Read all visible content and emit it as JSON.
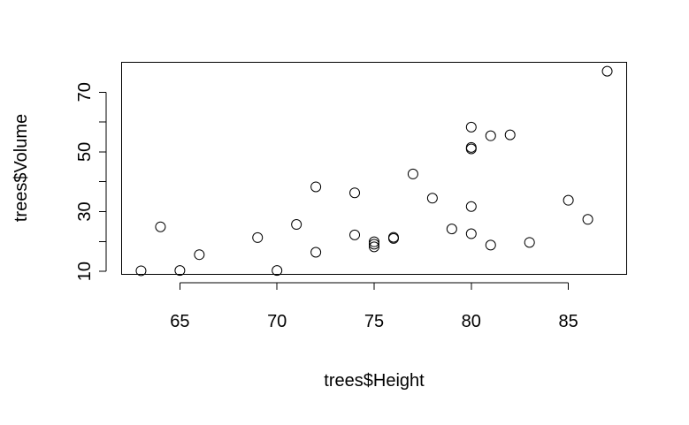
{
  "chart_data": {
    "type": "scatter",
    "title": "",
    "xlabel": "trees$Height",
    "ylabel": "trees$Volume",
    "xlim": [
      62,
      88
    ],
    "ylim": [
      9,
      80
    ],
    "x_ticks": [
      65,
      70,
      75,
      80,
      85
    ],
    "y_ticks": [
      10,
      30,
      50,
      70
    ],
    "y_minor_ticks": [
      20,
      40,
      60
    ],
    "grid": false,
    "legend": "none",
    "point_shape": "open-circle",
    "colors": {
      "point": "#000000",
      "axis": "#000000",
      "background": "#ffffff"
    },
    "points": [
      {
        "x": 70,
        "y": 10.3
      },
      {
        "x": 65,
        "y": 10.3
      },
      {
        "x": 63,
        "y": 10.2
      },
      {
        "x": 72,
        "y": 16.4
      },
      {
        "x": 81,
        "y": 18.8
      },
      {
        "x": 83,
        "y": 19.7
      },
      {
        "x": 66,
        "y": 15.6
      },
      {
        "x": 75,
        "y": 18.2
      },
      {
        "x": 80,
        "y": 22.6
      },
      {
        "x": 75,
        "y": 19.9
      },
      {
        "x": 79,
        "y": 24.2
      },
      {
        "x": 76,
        "y": 21.0
      },
      {
        "x": 76,
        "y": 21.4
      },
      {
        "x": 69,
        "y": 21.3
      },
      {
        "x": 75,
        "y": 19.1
      },
      {
        "x": 74,
        "y": 22.2
      },
      {
        "x": 85,
        "y": 33.8
      },
      {
        "x": 86,
        "y": 27.4
      },
      {
        "x": 71,
        "y": 25.7
      },
      {
        "x": 64,
        "y": 24.9
      },
      {
        "x": 78,
        "y": 34.5
      },
      {
        "x": 80,
        "y": 31.7
      },
      {
        "x": 74,
        "y": 36.3
      },
      {
        "x": 72,
        "y": 38.3
      },
      {
        "x": 77,
        "y": 42.6
      },
      {
        "x": 81,
        "y": 55.4
      },
      {
        "x": 82,
        "y": 55.7
      },
      {
        "x": 80,
        "y": 58.3
      },
      {
        "x": 80,
        "y": 51.5
      },
      {
        "x": 80,
        "y": 51.0
      },
      {
        "x": 87,
        "y": 77.0
      }
    ]
  }
}
